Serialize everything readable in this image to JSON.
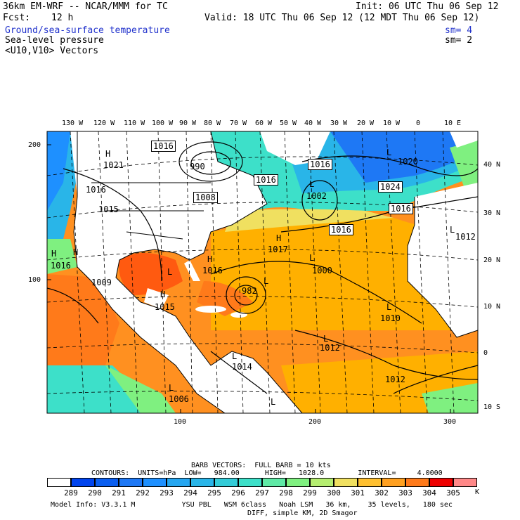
{
  "header": {
    "model_line": "36km EM-WRF -- NCAR/MMM for TC",
    "init": "Init: 06 UTC Thu 06 Sep 12",
    "fcst_label": "Fcst:",
    "fcst_value": "12 h",
    "valid": "Valid: 18 UTC Thu 06 Sep 12 (12 MDT Thu 06 Sep 12)",
    "field1": "Ground/sea-surface temperature",
    "field1_sm": "sm= 4",
    "field2": "Sea-level pressure",
    "field2_sm": "sm= 2",
    "field3": "<U10,V10> Vectors"
  },
  "map": {
    "top_lon_labels": [
      "130 W",
      "120 W",
      "110 W",
      "100 W",
      "90 W",
      "80 W",
      "70 W",
      "60 W",
      "50 W",
      "40 W",
      "30 W",
      "20 W",
      "10 W",
      "0",
      "10 E"
    ],
    "right_lat_labels": [
      "40 N",
      "30 N",
      "20 N",
      "10 N",
      "0",
      "10 S"
    ],
    "left_axis": [
      "200",
      "100"
    ],
    "bottom_axis": [
      "100",
      "200",
      "300"
    ],
    "pressure_labels": [
      "1016",
      "990",
      "1008",
      "1016",
      "1016",
      "1024",
      "1016",
      "1021",
      "1015",
      "1016",
      "1017",
      "1016",
      "1009",
      "1015",
      "1000",
      "1012",
      "1010",
      "1012",
      "1014",
      "1006",
      "1012",
      "1002",
      "1016",
      "1020",
      "1016",
      "982"
    ],
    "high_low": [
      "H",
      "H",
      "H",
      "H",
      "H",
      "H",
      "L",
      "L",
      "L",
      "L",
      "L",
      "L",
      "L",
      "L",
      "L",
      "L",
      "L"
    ],
    "colors": {
      "land": "#ffffff",
      "c289": "#0055ee",
      "c291": "#1e90ff",
      "c293": "#29b5e8",
      "c295": "#3de0c9",
      "c297": "#7ff080",
      "c299": "#f0e060",
      "c300": "#ffb000",
      "c301": "#ff9020",
      "c302": "#ff7a1a",
      "c303": "#ff5a10",
      "c304": "#ee0000",
      "c305": "#ff8888"
    }
  },
  "footer": {
    "barb": "BARB VECTORS:  FULL BARB = 10 kts",
    "contours": "CONTOURS:  UNITS=hPa  LOW=   984.00      HIGH=   1028.0        INTERVAL=     4.0000",
    "colorbar_values": [
      "289",
      "290",
      "291",
      "292",
      "293",
      "294",
      "295",
      "296",
      "297",
      "298",
      "299",
      "300",
      "301",
      "302",
      "303",
      "304",
      "305"
    ],
    "colorbar_colors": [
      "#0044ee",
      "#0a5ef0",
      "#1e78f5",
      "#1e90ff",
      "#25a6f0",
      "#29b5e8",
      "#33ccd8",
      "#3de0c9",
      "#5fe9a6",
      "#7ff080",
      "#b5ee70",
      "#f0e060",
      "#ffc030",
      "#ffa020",
      "#ff7a1a",
      "#ee0000",
      "#ff8888"
    ],
    "unit": "K",
    "model_info": "Model Info: V3.3.1 M           YSU PBL   WSM 6class   Noah LSM   36 km,    35 levels,   180 sec",
    "model_info2": "DIFF, simple KM, 2D Smagor"
  }
}
